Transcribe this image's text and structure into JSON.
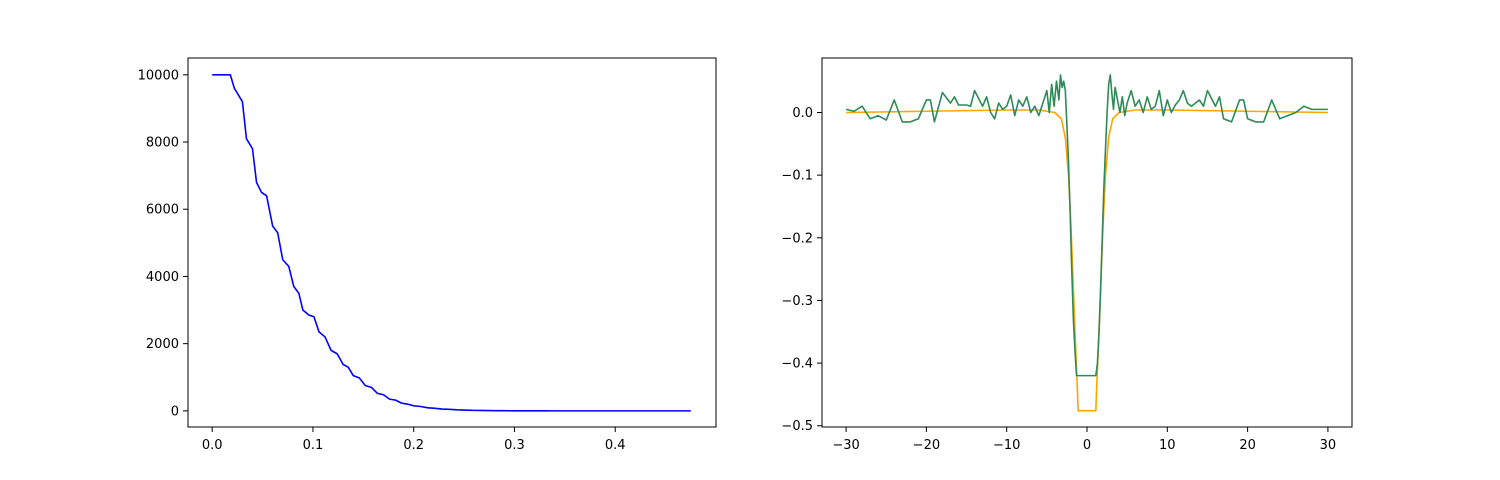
{
  "chart_data": [
    {
      "type": "line",
      "xlim": [
        -0.024,
        0.5
      ],
      "ylim": [
        -480,
        10500
      ],
      "xticks": [
        0.0,
        0.1,
        0.2,
        0.3,
        0.4
      ],
      "xtick_labels": [
        "0.0",
        "0.1",
        "0.2",
        "0.3",
        "0.4"
      ],
      "yticks": [
        0,
        2000,
        4000,
        6000,
        8000,
        10000
      ],
      "ytick_labels": [
        "0",
        "2000",
        "4000",
        "6000",
        "8000",
        "10000"
      ],
      "grid": false,
      "series": [
        {
          "color": "#0000ff",
          "x": [
            0.0,
            0.01,
            0.018,
            0.022,
            0.03,
            0.034,
            0.04,
            0.044,
            0.049,
            0.054,
            0.06,
            0.065,
            0.07,
            0.076,
            0.081,
            0.086,
            0.09,
            0.096,
            0.101,
            0.106,
            0.112,
            0.118,
            0.124,
            0.13,
            0.135,
            0.14,
            0.146,
            0.152,
            0.158,
            0.164,
            0.17,
            0.176,
            0.182,
            0.188,
            0.194,
            0.2,
            0.207,
            0.214,
            0.22,
            0.228,
            0.235,
            0.243,
            0.25,
            0.258,
            0.266,
            0.274,
            0.282,
            0.29,
            0.3,
            0.31,
            0.32,
            0.33,
            0.34,
            0.35,
            0.36,
            0.38,
            0.4,
            0.42,
            0.44,
            0.46,
            0.475
          ],
          "y": [
            10000,
            10000,
            10000,
            9600,
            9200,
            8100,
            7800,
            6800,
            6500,
            6400,
            5500,
            5300,
            4500,
            4300,
            3700,
            3500,
            3000,
            2850,
            2800,
            2350,
            2200,
            1800,
            1700,
            1380,
            1300,
            1050,
            980,
            750,
            700,
            520,
            480,
            350,
            320,
            230,
            200,
            150,
            130,
            90,
            80,
            55,
            45,
            30,
            25,
            15,
            12,
            8,
            6,
            4,
            3,
            2,
            1,
            1,
            0,
            0,
            0,
            0,
            0,
            0,
            0,
            0,
            0
          ]
        }
      ]
    },
    {
      "type": "line",
      "xlim": [
        -33,
        33
      ],
      "ylim": [
        -0.502,
        0.087
      ],
      "xticks": [
        -30,
        -20,
        -10,
        0,
        10,
        20,
        30
      ],
      "xtick_labels": [
        "−30",
        "−20",
        "−10",
        "0",
        "10",
        "20",
        "30"
      ],
      "yticks": [
        -0.5,
        -0.4,
        -0.3,
        -0.2,
        -0.1,
        0.0
      ],
      "ytick_labels": [
        "−0.5",
        "−0.4",
        "−0.3",
        "−0.2",
        "−0.1",
        "0.0"
      ],
      "grid": false,
      "series": [
        {
          "color": "#ffa500",
          "x": [
            -30,
            -25,
            -20,
            -15,
            -10,
            -6,
            -4,
            -3.2,
            -2.7,
            -2.3,
            -2,
            -1.7,
            -1.4,
            -1.2,
            -1.1,
            1.1,
            1.2,
            1.4,
            1.7,
            2,
            2.3,
            2.7,
            3.2,
            4,
            6,
            10,
            15,
            20,
            25,
            30
          ],
          "y": [
            0.0,
            0.001,
            0.002,
            0.003,
            0.004,
            0.004,
            0.0,
            -0.01,
            -0.04,
            -0.1,
            -0.18,
            -0.28,
            -0.38,
            -0.44,
            -0.476,
            -0.476,
            -0.44,
            -0.38,
            -0.28,
            -0.18,
            -0.1,
            -0.04,
            -0.01,
            0.0,
            0.004,
            0.004,
            0.003,
            0.002,
            0.001,
            0.0
          ]
        },
        {
          "color": "#2e8b57",
          "x": [
            -30,
            -29,
            -28,
            -27,
            -26,
            -25,
            -24,
            -23,
            -22,
            -21,
            -20,
            -19.5,
            -19,
            -18,
            -17,
            -16.5,
            -16,
            -15,
            -14.5,
            -14,
            -13,
            -12.5,
            -12,
            -11.5,
            -11,
            -10.5,
            -10,
            -9.5,
            -9,
            -8.5,
            -8,
            -7.5,
            -7,
            -6.5,
            -6,
            -5.5,
            -5,
            -4.7,
            -4.4,
            -4.1,
            -3.8,
            -3.5,
            -3.3,
            -3.1,
            -2.9,
            -2.7,
            -2.5,
            -2.3,
            -2.1,
            -1.9,
            -1.7,
            -1.5,
            -1.3,
            -1.1,
            1.1,
            1.3,
            1.5,
            1.7,
            1.9,
            2.1,
            2.3,
            2.5,
            2.7,
            2.9,
            3.1,
            3.3,
            3.5,
            3.8,
            4.1,
            4.4,
            4.7,
            5,
            5.5,
            6,
            6.5,
            7,
            7.5,
            8,
            8.5,
            9,
            9.5,
            10,
            10.5,
            11,
            11.5,
            12,
            12.5,
            13,
            14,
            14.5,
            15,
            16,
            16.5,
            17,
            18,
            19,
            19.5,
            20,
            21,
            22,
            23,
            24,
            25,
            26,
            27,
            28,
            29,
            30
          ],
          "y": [
            0.005,
            0.002,
            0.01,
            -0.01,
            -0.005,
            -0.012,
            0.02,
            -0.015,
            -0.015,
            -0.01,
            0.02,
            0.02,
            -0.015,
            0.032,
            0.015,
            0.025,
            0.012,
            0.012,
            0.01,
            0.035,
            0.01,
            0.025,
            0.0,
            -0.01,
            0.015,
            0.005,
            0.01,
            0.028,
            -0.005,
            0.02,
            0.01,
            0.025,
            0.0,
            0.01,
            -0.005,
            0.015,
            0.035,
            0.0,
            0.045,
            0.01,
            0.05,
            0.02,
            0.06,
            0.04,
            0.05,
            0.035,
            -0.02,
            -0.08,
            -0.16,
            -0.25,
            -0.33,
            -0.38,
            -0.42,
            -0.42,
            -0.42,
            -0.4,
            -0.35,
            -0.28,
            -0.2,
            -0.12,
            -0.06,
            0.0,
            0.045,
            0.06,
            0.03,
            0.005,
            0.04,
            0.02,
            0.0,
            0.025,
            -0.005,
            0.015,
            0.035,
            0.01,
            0.02,
            0.0,
            0.025,
            0.005,
            0.01,
            0.035,
            -0.005,
            0.02,
            0.0,
            0.012,
            0.02,
            0.035,
            0.015,
            0.01,
            0.02,
            0.01,
            0.035,
            0.01,
            0.025,
            -0.01,
            -0.015,
            0.02,
            0.02,
            -0.01,
            -0.015,
            -0.015,
            0.02,
            -0.01,
            -0.005,
            0.0,
            0.01,
            0.005,
            0.005,
            0.005
          ]
        }
      ]
    }
  ]
}
